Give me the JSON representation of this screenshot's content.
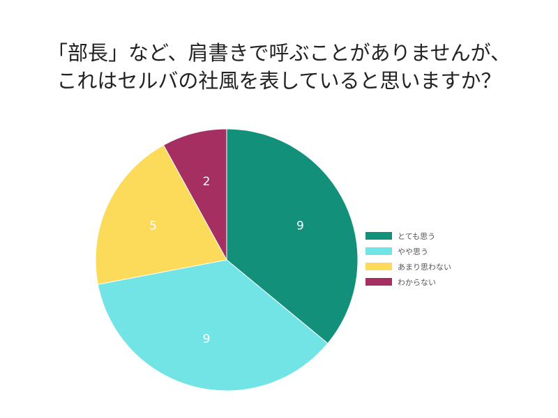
{
  "title": {
    "line1": "「部長」など、肩書きで呼ぶことがありませんが、",
    "line2": "これはセルバの社風を表していると思いますか？"
  },
  "chart_data": {
    "type": "pie",
    "title": "「部長」など、肩書きで呼ぶことがありませんが、これはセルバの社風を表していると思いますか？",
    "categories": [
      "とても思う",
      "やや思う",
      "あまり思わない",
      "わからない"
    ],
    "values": [
      9,
      9,
      5,
      2
    ],
    "colors": [
      "#13907a",
      "#72e4e6",
      "#fcdb5a",
      "#a52f60"
    ],
    "data_labels": [
      "9",
      "9",
      "5",
      "2"
    ],
    "legend_position": "right",
    "start_angle_deg": 0,
    "direction": "clockwise"
  }
}
